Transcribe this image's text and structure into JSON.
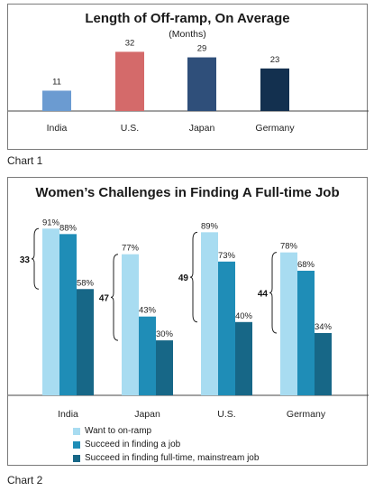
{
  "chart1": {
    "title": "Length of Off-ramp, On Average",
    "subtitle": "(Months)",
    "caption": "Chart 1"
  },
  "chart2": {
    "title": "Women’s Challenges in Finding A Full-time Job",
    "caption": "Chart 2"
  },
  "colors": {
    "India": "#6b9bd1",
    "U.S.": "#d46a6a",
    "Japan": "#2f4f7a",
    "Germany": "#13304f",
    "want": "#a8dcf1",
    "succeed": "#1f8db7",
    "fulltime": "#176787"
  },
  "chart_data": [
    {
      "type": "bar",
      "title": "Length of Off-ramp, On Average",
      "subtitle": "(Months)",
      "categories": [
        "India",
        "U.S.",
        "Japan",
        "Germany"
      ],
      "values": [
        11,
        32,
        29,
        23
      ],
      "data_labels": [
        "11",
        "32",
        "29",
        "23"
      ],
      "ylim": [
        0,
        40
      ],
      "grid": false
    },
    {
      "type": "bar",
      "title": "Women’s Challenges in Finding A Full-time Job",
      "categories": [
        "India",
        "Japan",
        "U.S.",
        "Germany"
      ],
      "series": [
        {
          "name": "Want to on-ramp",
          "values": [
            91,
            77,
            89,
            78
          ],
          "labels": [
            "91%",
            "77%",
            "89%",
            "78%"
          ]
        },
        {
          "name": "Succeed in finding a job",
          "values": [
            88,
            43,
            73,
            68
          ],
          "labels": [
            "88%",
            "43%",
            "73%",
            "68%"
          ]
        },
        {
          "name": "Succeed in finding full-time, mainstream job",
          "values": [
            58,
            30,
            40,
            34
          ],
          "labels": [
            "58%",
            "30%",
            "40%",
            "34%"
          ]
        }
      ],
      "gap_labels": [
        "33",
        "47",
        "49",
        "44"
      ],
      "ylim": [
        0,
        100
      ],
      "legend_position": "bottom",
      "grid": false
    }
  ]
}
